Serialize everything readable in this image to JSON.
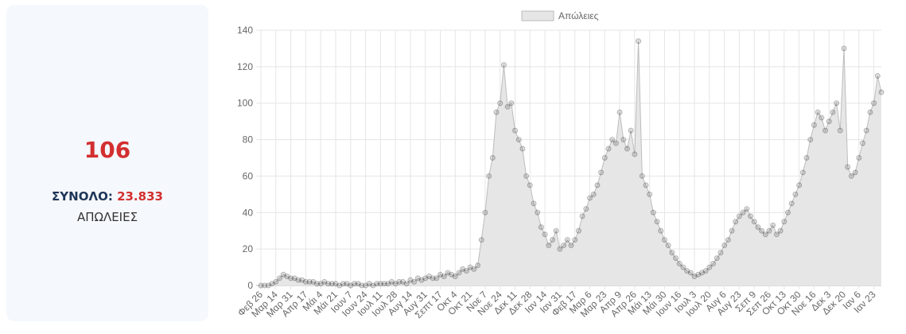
{
  "card": {
    "value": "106",
    "total_label": "ΣΥΝΟΛΟ:",
    "total_value": "23.833",
    "label": "ΑΠΩΛΕΙΕΣ"
  },
  "chart_data": {
    "type": "area",
    "legend": "top",
    "grid": true,
    "ylim": [
      0,
      140
    ],
    "yticks": [
      0,
      20,
      40,
      60,
      80,
      100,
      120,
      140
    ],
    "categories": [
      "Φεβ 26",
      null,
      null,
      null,
      "Μαρ 14",
      null,
      null,
      null,
      "Μαρ 31",
      null,
      null,
      null,
      "Απρ 17",
      null,
      null,
      null,
      "Μάι 4",
      null,
      null,
      null,
      "Μάι 21",
      null,
      null,
      null,
      "Ιουν 7",
      null,
      null,
      null,
      "Ιουν 24",
      null,
      null,
      null,
      "Ιουλ 11",
      null,
      null,
      null,
      "Ιουλ 28",
      null,
      null,
      null,
      "Αυγ 14",
      null,
      null,
      null,
      "Αυγ 31",
      null,
      null,
      null,
      "Σεπτ 17",
      null,
      null,
      null,
      "Οκτ 4",
      null,
      null,
      null,
      "Οκτ 21",
      null,
      null,
      null,
      "Νοε 7",
      null,
      null,
      null,
      "Νοε 24",
      null,
      null,
      null,
      "Δεκ 11",
      null,
      null,
      null,
      "Δεκ 28",
      null,
      null,
      null,
      "Ιαν 14",
      null,
      null,
      null,
      "Ιαν 31",
      null,
      null,
      null,
      "Φεβ 17",
      null,
      null,
      null,
      "Μαρ 6",
      null,
      null,
      null,
      "Μαρ 23",
      null,
      null,
      null,
      "Απρ 9",
      null,
      null,
      null,
      "Απρ 26",
      null,
      null,
      null,
      "Μάι 13",
      null,
      null,
      null,
      "Μάι 30",
      null,
      null,
      null,
      "Ιουν 16",
      null,
      null,
      null,
      "Ιουλ 3",
      null,
      null,
      null,
      "Ιουλ 20",
      null,
      null,
      null,
      "Αυγ 6",
      null,
      null,
      null,
      "Αυγ 23",
      null,
      null,
      null,
      "Σεπ 9",
      null,
      null,
      null,
      "Σεπ 26",
      null,
      null,
      null,
      "Οκτ 13",
      null,
      null,
      null,
      "Οκτ 30",
      null,
      null,
      null,
      "Νοε 16",
      null,
      null,
      null,
      "Δεκ 3",
      null,
      null,
      null,
      "Δεκ 20",
      null,
      null,
      null,
      "Ιαν 6",
      null,
      null,
      null,
      "Ιαν 23",
      null,
      null
    ],
    "series": [
      {
        "name": "Απώλειες",
        "color": "#e6e6e6",
        "values": [
          0,
          0,
          0,
          1,
          2,
          4,
          6,
          5,
          4,
          4,
          3,
          3,
          2,
          2,
          2,
          1,
          1,
          2,
          1,
          1,
          1,
          0,
          1,
          1,
          0,
          1,
          1,
          0,
          0,
          1,
          0,
          1,
          1,
          1,
          1,
          2,
          1,
          2,
          2,
          1,
          3,
          2,
          4,
          3,
          4,
          5,
          4,
          4,
          6,
          5,
          7,
          6,
          5,
          7,
          9,
          8,
          10,
          9,
          11,
          25,
          40,
          60,
          70,
          95,
          100,
          121,
          98,
          100,
          85,
          80,
          75,
          60,
          55,
          45,
          40,
          32,
          28,
          22,
          25,
          30,
          20,
          22,
          25,
          22,
          25,
          30,
          38,
          42,
          48,
          50,
          55,
          62,
          70,
          75,
          80,
          78,
          95,
          80,
          75,
          85,
          72,
          134,
          60,
          55,
          50,
          40,
          35,
          30,
          25,
          22,
          18,
          15,
          12,
          10,
          8,
          7,
          5,
          6,
          7,
          8,
          10,
          12,
          15,
          18,
          22,
          25,
          30,
          35,
          38,
          40,
          42,
          38,
          35,
          32,
          30,
          28,
          30,
          33,
          28,
          30,
          35,
          40,
          45,
          50,
          55,
          62,
          70,
          80,
          88,
          95,
          92,
          85,
          90,
          95,
          100,
          85,
          130,
          65,
          60,
          62,
          70,
          78,
          85,
          95,
          100,
          115,
          106
        ]
      }
    ]
  }
}
